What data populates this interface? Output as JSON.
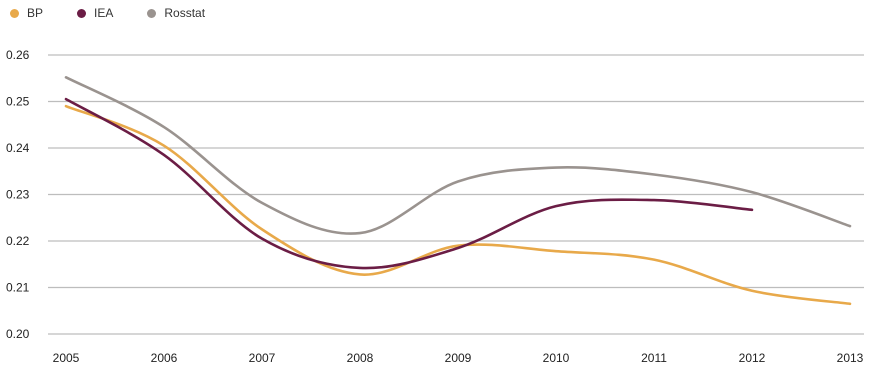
{
  "chart_data": {
    "type": "line",
    "title": "",
    "xlabel": "",
    "ylabel": "",
    "categories": [
      "2005",
      "2006",
      "2007",
      "2008",
      "2009",
      "2010",
      "2011",
      "2012",
      "2013"
    ],
    "ylim": [
      0.2,
      0.26
    ],
    "yticks": [
      "0.20",
      "0.21",
      "0.22",
      "0.23",
      "0.24",
      "0.25",
      "0.26"
    ],
    "grid": true,
    "legend_position": "top-left",
    "series": [
      {
        "name": "BP",
        "color": "#e8a94a",
        "values": [
          0.249,
          0.2405,
          0.2225,
          0.2128,
          0.219,
          0.2178,
          0.216,
          0.2093,
          0.2065
        ]
      },
      {
        "name": "IEA",
        "color": "#6b1d45",
        "values": [
          0.2505,
          0.2385,
          0.2205,
          0.2142,
          0.2185,
          0.2275,
          0.2288,
          0.2267,
          null
        ]
      },
      {
        "name": "Rosstat",
        "color": "#9a938f",
        "values": [
          0.2552,
          0.2445,
          0.2282,
          0.2217,
          0.2328,
          0.2358,
          0.2343,
          0.2305,
          0.2232
        ]
      }
    ]
  }
}
